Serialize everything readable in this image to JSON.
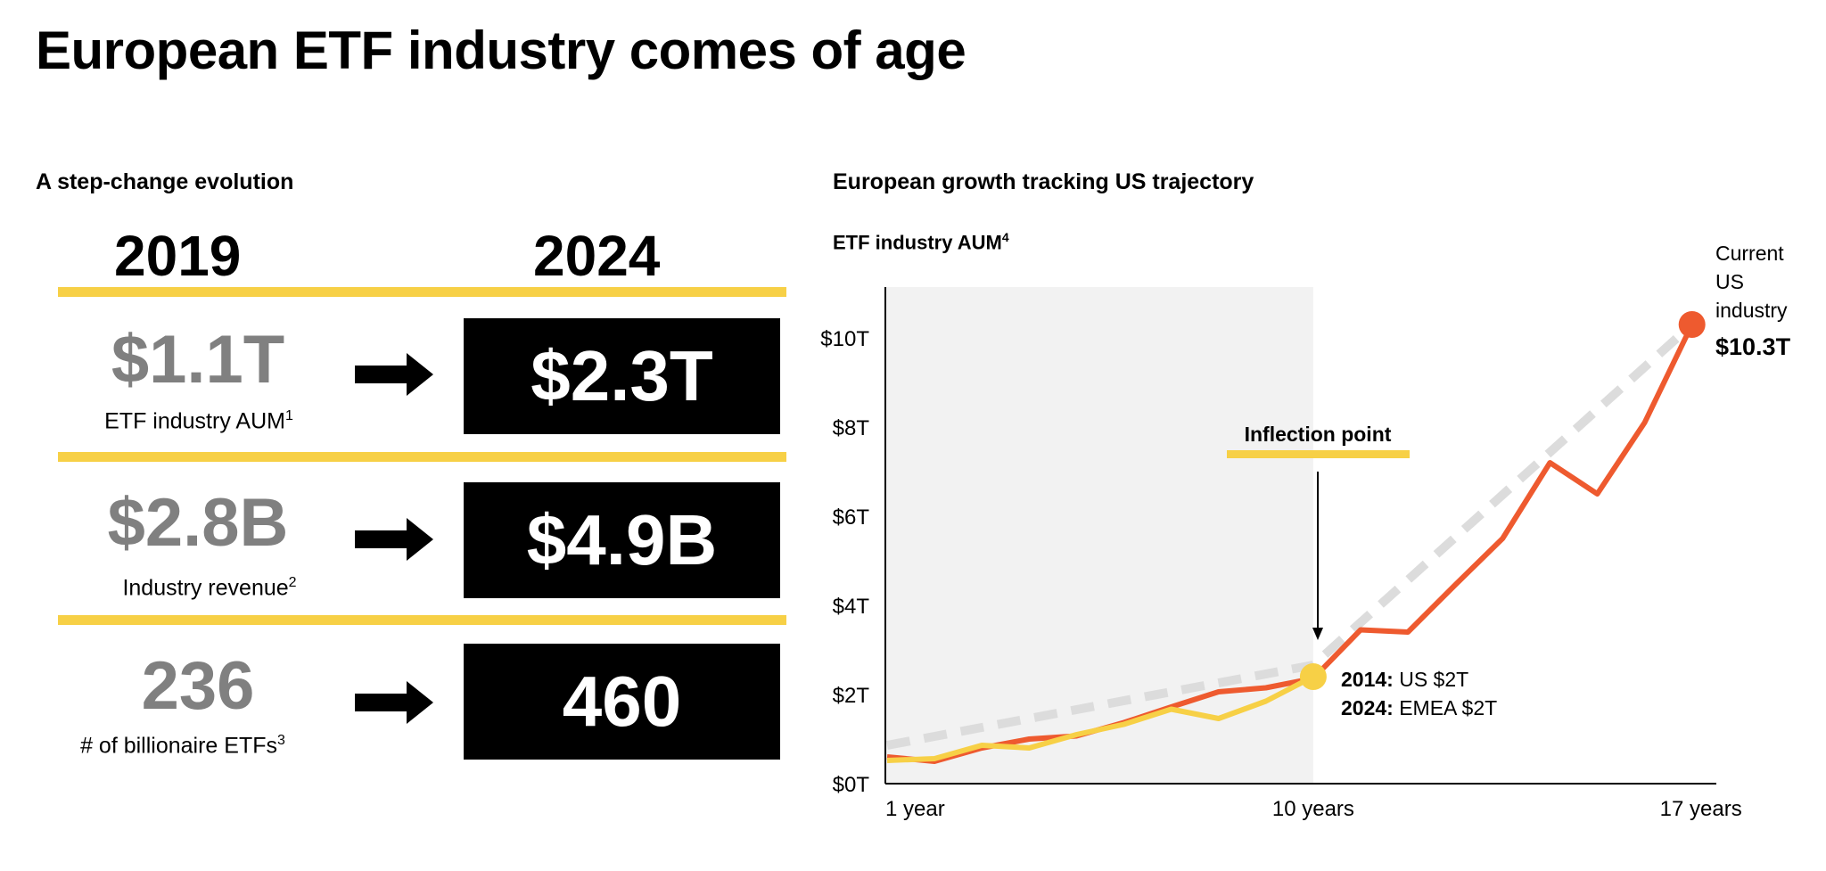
{
  "title": "European ETF industry comes of age",
  "left": {
    "heading": "A step-change evolution",
    "year_from": "2019",
    "year_to": "2024",
    "rows": [
      {
        "from": "$1.1T",
        "to": "$2.3T",
        "label": "ETF industry AUM",
        "footnote": "1"
      },
      {
        "from": "$2.8B",
        "to": "$4.9B",
        "label": "Industry revenue",
        "footnote": "2"
      },
      {
        "from": "236",
        "to": "460",
        "label": "# of billionaire ETFs",
        "footnote": "3"
      }
    ]
  },
  "right": {
    "heading": "European growth tracking US trajectory",
    "chart_title": "ETF industry AUM",
    "chart_footnote": "4"
  },
  "colors": {
    "accent_yellow": "#F7D046",
    "us_line": "#EE5A2F",
    "trend": "#DCDCDC",
    "shade": "#F2F2F2",
    "muted_text": "#808080"
  },
  "chart_data": {
    "type": "line",
    "title": "ETF industry AUM",
    "xlabel": "",
    "ylabel": "",
    "x_tick_labels": [
      "1 year",
      "10 years",
      "17 years"
    ],
    "y_ticks": [
      0,
      2,
      4,
      6,
      8,
      10
    ],
    "y_tick_labels": [
      "$0T",
      "$2T",
      "$4T",
      "$6T",
      "$8T",
      "$10T"
    ],
    "ylim": [
      0,
      11
    ],
    "unit": "$T",
    "grid": false,
    "series": [
      {
        "key": "us",
        "color": "#EE5A2F",
        "values": [
          0.6,
          0.5,
          0.8,
          1.0,
          1.07,
          1.37,
          1.72,
          2.06,
          2.15,
          2.36,
          3.45,
          3.4,
          4.46,
          5.5,
          7.2,
          6.5,
          8.1,
          10.3
        ]
      },
      {
        "key": "emea",
        "color": "#F7D046",
        "values": [
          0.52,
          0.56,
          0.86,
          0.8,
          1.1,
          1.33,
          1.67,
          1.46,
          1.85,
          2.4
        ]
      },
      {
        "key": "trend",
        "color": "#DCDCDC",
        "dashed": true,
        "points": [
          [
            0,
            0.86
          ],
          [
            9,
            2.66
          ],
          [
            17,
            10.3
          ]
        ]
      }
    ],
    "shaded_region_through_point": 9,
    "annotations": {
      "inflection": "Inflection point",
      "point_line1_bold": "2014:",
      "point_line1": " US $2T",
      "point_line2_bold": "2024:",
      "point_line2": " EMEA $2T",
      "current_lines": [
        "Current",
        "US",
        "industry"
      ],
      "current_value": "$10.3T"
    }
  }
}
